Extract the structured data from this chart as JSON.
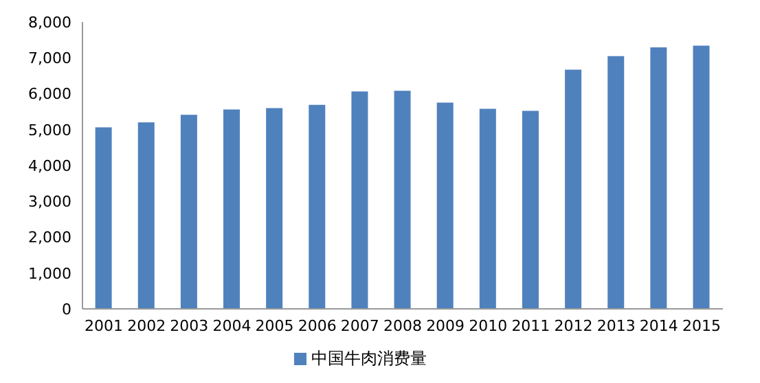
{
  "chart_data": {
    "type": "bar",
    "categories": [
      "2001",
      "2002",
      "2003",
      "2004",
      "2005",
      "2006",
      "2007",
      "2008",
      "2009",
      "2010",
      "2011",
      "2012",
      "2013",
      "2014",
      "2015"
    ],
    "series": [
      {
        "name": "中国牛肉消费量",
        "color": "#4f81bd",
        "values": [
          5060,
          5200,
          5410,
          5560,
          5600,
          5690,
          6060,
          6080,
          5750,
          5580,
          5520,
          6670,
          7050,
          7290,
          7340
        ]
      }
    ],
    "ylim": [
      0,
      8000
    ],
    "yticks": [
      {
        "value": 0,
        "label": "0"
      },
      {
        "value": 1000,
        "label": "1,000"
      },
      {
        "value": 2000,
        "label": "2,000"
      },
      {
        "value": 3000,
        "label": "3,000"
      },
      {
        "value": 4000,
        "label": "4,000"
      },
      {
        "value": 5000,
        "label": "5,000"
      },
      {
        "value": 6000,
        "label": "6,000"
      },
      {
        "value": 7000,
        "label": "7,000"
      },
      {
        "value": 8000,
        "label": "8,000"
      }
    ],
    "grid": false,
    "legend": "bottom"
  }
}
